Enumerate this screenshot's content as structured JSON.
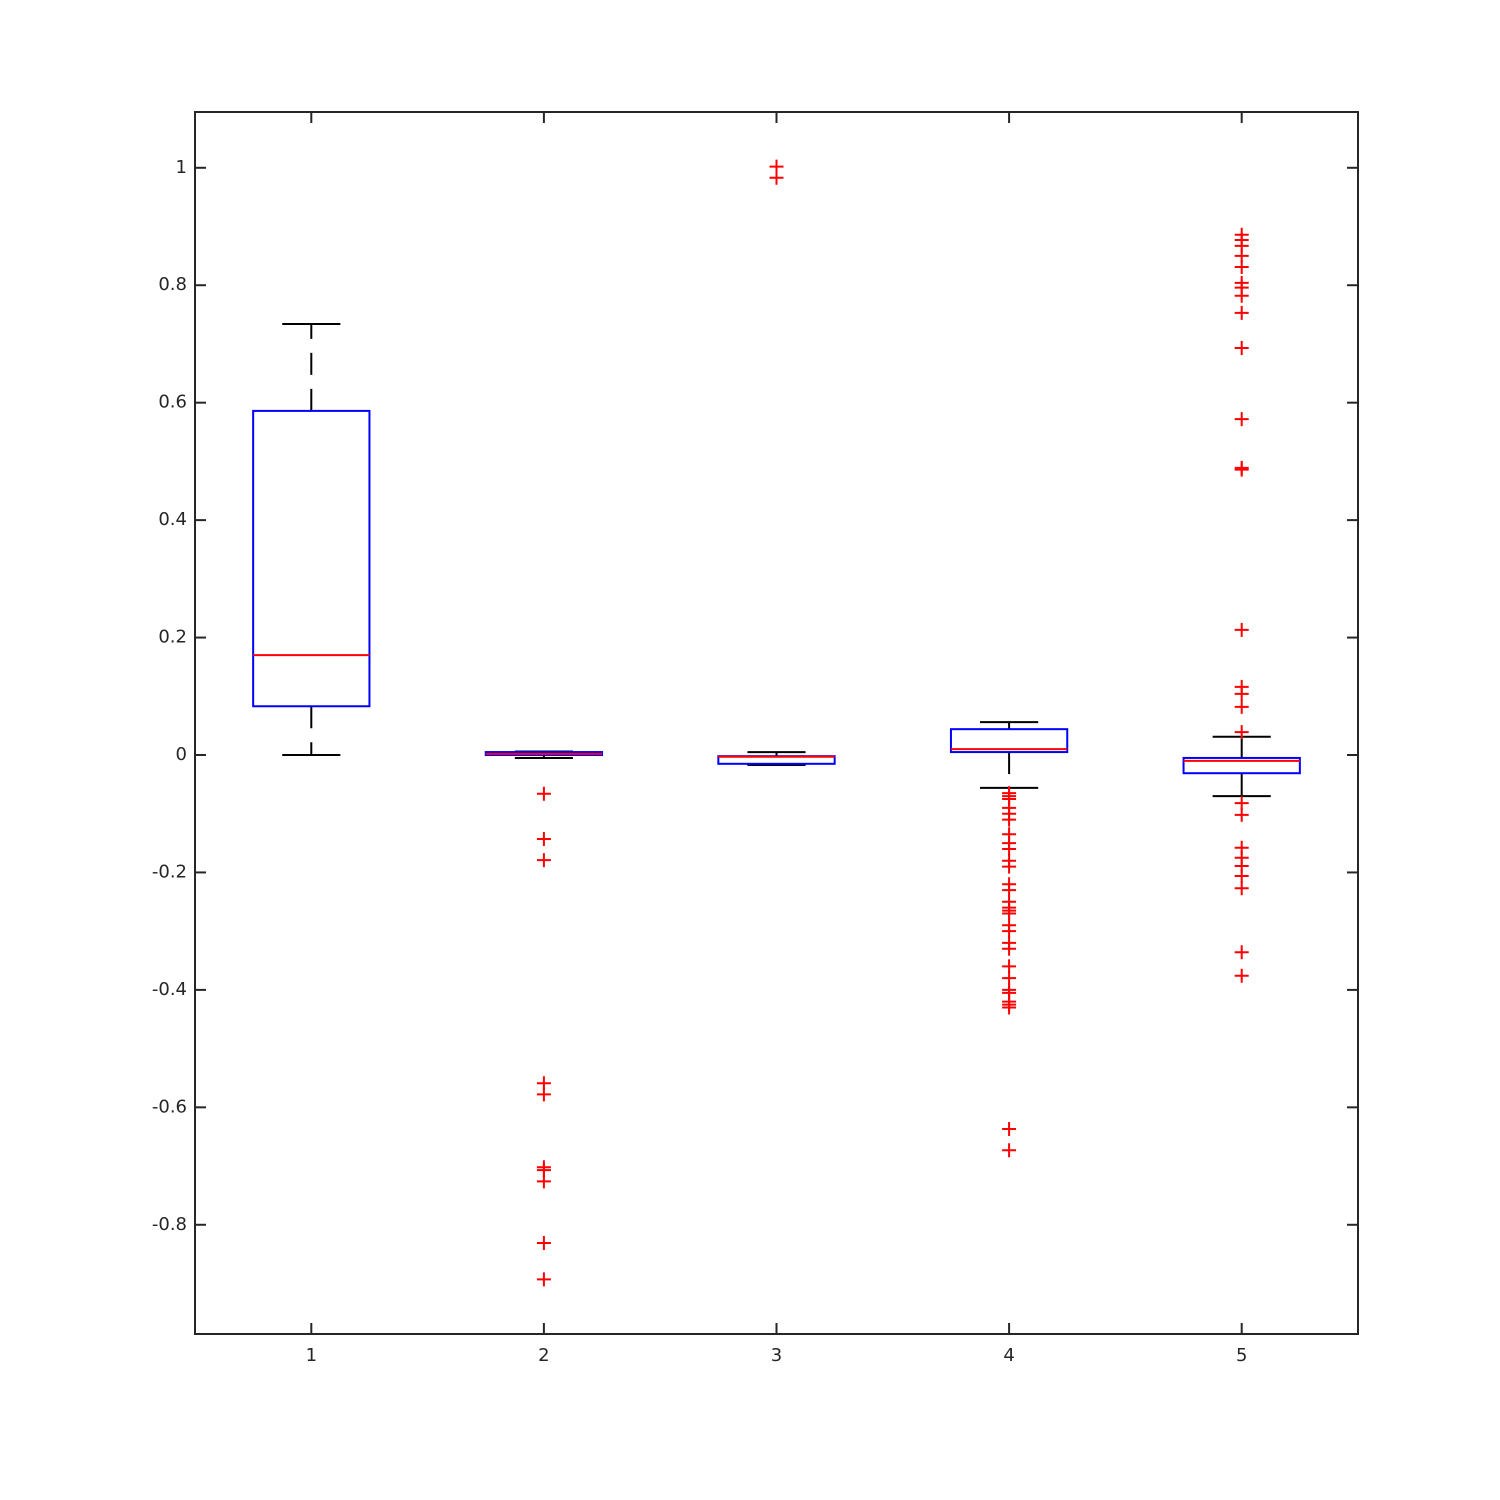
{
  "chart_data": {
    "type": "box",
    "categories": [
      "1",
      "2",
      "3",
      "4",
      "5"
    ],
    "box_color": "#0000ff",
    "median_color": "#ff0000",
    "whisker_color": "#000000",
    "outlier_color": "#ff0000",
    "ylim": [
      -0.986,
      1.095
    ],
    "yticks": [
      -0.8,
      -0.6,
      -0.4,
      -0.2,
      0,
      0.2,
      0.4,
      0.6,
      0.8,
      1
    ],
    "boxes": [
      {
        "whisker_low": 0.0,
        "q1": 0.083,
        "median": 0.17,
        "q3": 0.586,
        "whisker_high": 0.734,
        "outliers": []
      },
      {
        "whisker_low": -0.005,
        "q1": 0.0,
        "median": 0.002,
        "q3": 0.005,
        "whisker_high": 0.006,
        "outliers": [
          -0.066,
          -0.143,
          -0.179,
          -0.559,
          -0.578,
          -0.702,
          -0.707,
          -0.726,
          -0.831,
          -0.893
        ]
      },
      {
        "whisker_low": -0.017,
        "q1": -0.015,
        "median": -0.003,
        "q3": -0.002,
        "whisker_high": 0.005,
        "outliers": [
          1.002,
          0.983
        ]
      },
      {
        "whisker_low": -0.056,
        "q1": 0.005,
        "median": 0.01,
        "q3": 0.044,
        "whisker_high": 0.056,
        "outliers": [
          -0.065,
          -0.07,
          -0.075,
          -0.09,
          -0.1,
          -0.11,
          -0.135,
          -0.15,
          -0.16,
          -0.18,
          -0.19,
          -0.22,
          -0.23,
          -0.25,
          -0.26,
          -0.265,
          -0.27,
          -0.29,
          -0.3,
          -0.32,
          -0.33,
          -0.36,
          -0.38,
          -0.4,
          -0.405,
          -0.42,
          -0.425,
          -0.43,
          -0.637,
          -0.673
        ]
      },
      {
        "whisker_low": -0.07,
        "q1": -0.031,
        "median": -0.01,
        "q3": -0.005,
        "whisker_high": 0.031,
        "outliers": [
          0.886,
          0.877,
          0.867,
          0.85,
          0.831,
          0.804,
          0.796,
          0.782,
          0.753,
          0.693,
          0.572,
          0.489,
          0.486,
          0.213,
          0.116,
          0.104,
          0.082,
          0.039,
          -0.082,
          -0.102,
          -0.158,
          -0.175,
          -0.189,
          -0.206,
          -0.227,
          -0.336,
          -0.376
        ]
      }
    ]
  }
}
